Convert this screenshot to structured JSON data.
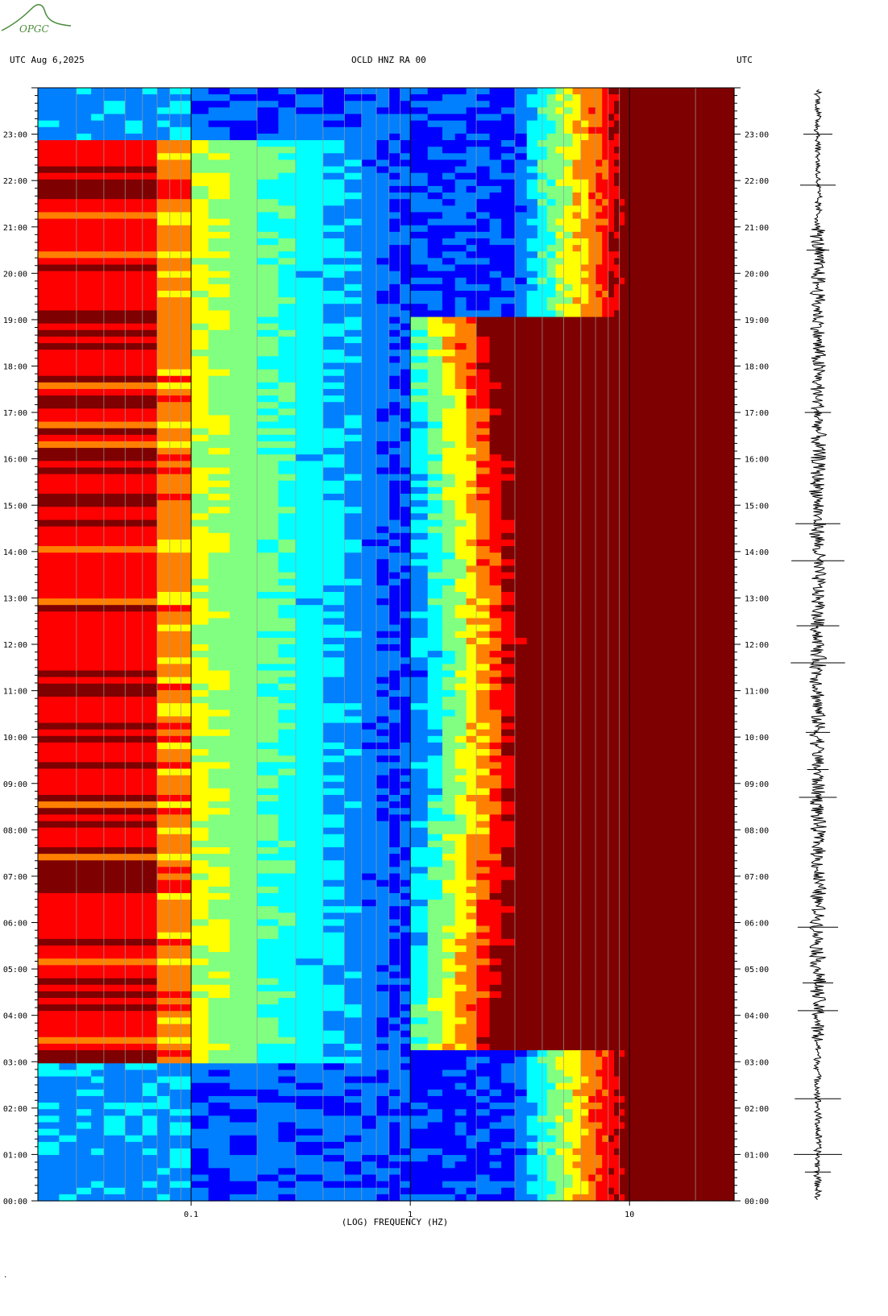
{
  "logo": {
    "text": "OPGC",
    "color": "#4a8a3a"
  },
  "header": {
    "left": "UTC  Aug 6,2025",
    "center": "OCLD HNZ RA 00",
    "right": "UTC"
  },
  "chart_data": {
    "type": "heatmap",
    "title": "OCLD HNZ RA 00",
    "date": "Aug 6,2025",
    "timezone": "UTC",
    "xlabel": "(LOG) FREQUENCY (HZ)",
    "xscale": "log",
    "xlim": [
      0.02,
      30
    ],
    "x_ticks": [
      {
        "value": 0.1,
        "label": "0.1"
      },
      {
        "value": 1,
        "label": "1"
      },
      {
        "value": 10,
        "label": "10"
      }
    ],
    "ylim": [
      "00:00",
      "24:00"
    ],
    "y_ticks": [
      "00:00",
      "01:00",
      "02:00",
      "03:00",
      "04:00",
      "05:00",
      "06:00",
      "07:00",
      "08:00",
      "09:00",
      "10:00",
      "11:00",
      "12:00",
      "13:00",
      "14:00",
      "15:00",
      "16:00",
      "17:00",
      "18:00",
      "19:00",
      "20:00",
      "21:00",
      "22:00",
      "23:00"
    ],
    "colormap": [
      "#00007f",
      "#0000ff",
      "#0080ff",
      "#00ffff",
      "#80ff80",
      "#ffff00",
      "#ff8000",
      "#ff0000",
      "#7f0000"
    ],
    "grid": true,
    "seismogram_trace": true
  },
  "footer_mark": "."
}
